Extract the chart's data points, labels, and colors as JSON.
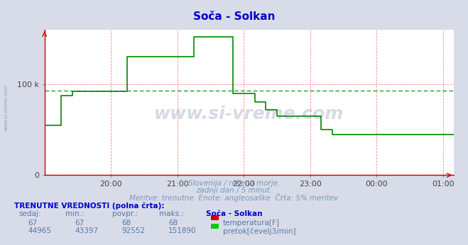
{
  "title": "Soča - Solkan",
  "title_color": "#0000cc",
  "bg_color": "#d8dce8",
  "plot_bg_color": "#ffffff",
  "grid_color_red": "#ff8888",
  "grid_color_green": "#aaccaa",
  "flow_color": "#008800",
  "temp_color": "#dd0000",
  "ylim": [
    0,
    160000
  ],
  "xlim_min": 0,
  "xlim_max": 370,
  "ytick_positions": [
    0,
    100000
  ],
  "ytick_labels": [
    "0",
    "100 k"
  ],
  "xtick_positions": [
    60,
    120,
    180,
    240,
    300,
    360
  ],
  "xtick_labels": [
    "20:00",
    "21:00",
    "22:00",
    "23:00",
    "00:00",
    "01:00"
  ],
  "caption_line1": "Slovenija / reke in morje.",
  "caption_line2": "zadnji dan / 5 minut.",
  "caption_line3": "Meritve: trenutne  Enote: angleosaške  Črta: 5% meritev",
  "caption_color": "#7799bb",
  "table_title": "TRENUTNE VREDNOSTI (polna črta):",
  "table_header_cols": [
    "sedaj:",
    "min.:",
    "povpr.:",
    "maks.:",
    "Soča - Solkan"
  ],
  "temp_row_vals": [
    "67",
    "67",
    "68",
    "68"
  ],
  "temp_row_label": "temperatura[F]",
  "flow_row_vals": [
    "44965",
    "43397",
    "92552",
    "151890"
  ],
  "flow_row_label": "pretok[čevelj3/min]",
  "flow_avg": 92552,
  "temp_avg": 68,
  "watermark_text": "www.si-vreme.com",
  "watermark_color": "#1a3a6a",
  "side_text": "www.si-vreme.com",
  "side_text_color": "#7788aa"
}
